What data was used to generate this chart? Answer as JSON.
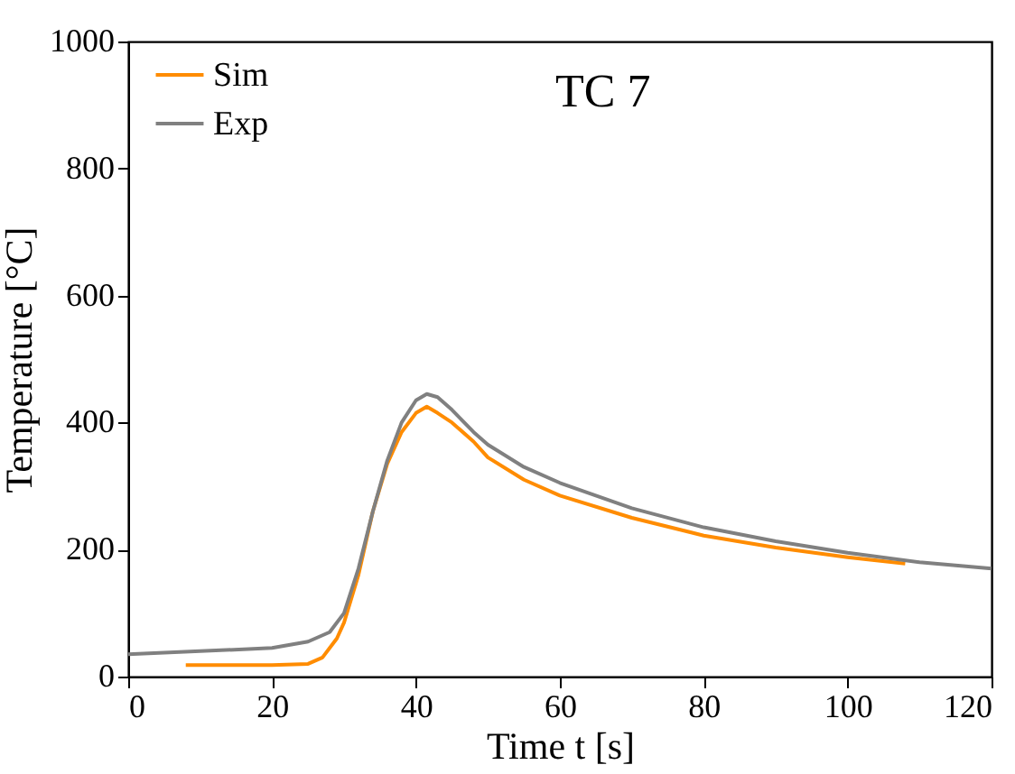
{
  "chart_data": {
    "type": "line",
    "xlabel": "Time t [s]",
    "ylabel": "Temperature [°C]",
    "annotations": [
      "TC 7"
    ],
    "xlim": [
      0,
      120
    ],
    "xticks": [
      0,
      20,
      40,
      60,
      80,
      100,
      120
    ],
    "ylim": [
      0,
      1000
    ],
    "yticks": [
      0,
      200,
      400,
      600,
      800,
      1000
    ],
    "legend": "top left",
    "grid": false,
    "series": [
      {
        "name": "Sim",
        "color": "#ff8c00",
        "x": [
          8,
          20,
          25,
          27,
          29,
          30,
          32,
          34,
          36,
          38,
          40,
          41.5,
          43,
          45,
          48,
          50,
          55,
          60,
          70,
          80,
          90,
          100,
          108
        ],
        "values": [
          18,
          18,
          20,
          30,
          60,
          85,
          160,
          260,
          335,
          385,
          415,
          425,
          415,
          400,
          370,
          345,
          310,
          285,
          250,
          222,
          203,
          188,
          178
        ]
      },
      {
        "name": "Exp",
        "color": "#808080",
        "x": [
          0,
          20,
          25,
          28,
          30,
          32,
          34,
          36,
          38,
          40,
          41.5,
          43,
          45,
          48,
          50,
          55,
          60,
          70,
          80,
          90,
          100,
          110,
          120
        ],
        "values": [
          35,
          45,
          55,
          70,
          100,
          170,
          260,
          340,
          400,
          435,
          445,
          440,
          420,
          385,
          365,
          330,
          305,
          265,
          235,
          213,
          195,
          180,
          170
        ]
      }
    ]
  }
}
